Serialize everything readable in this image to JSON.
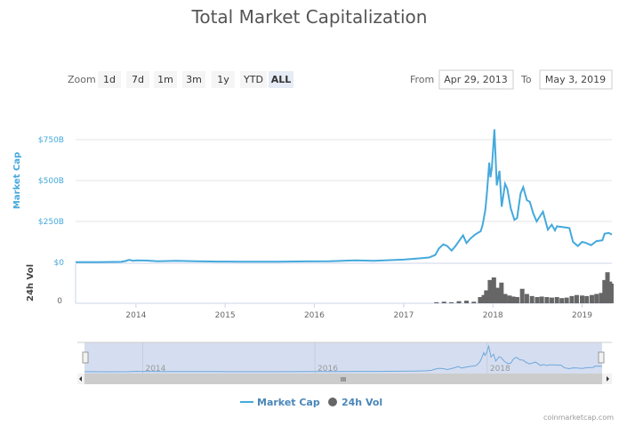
{
  "chart_data": {
    "type": "line",
    "title": "Total Market Capitalization",
    "range_selector": {
      "zoom_label": "Zoom",
      "buttons": [
        "1d",
        "7d",
        "1m",
        "3m",
        "1y",
        "YTD",
        "ALL"
      ],
      "active": "ALL",
      "from_label": "From",
      "from_value": "Apr 29, 2013",
      "to_label": "To",
      "to_value": "May 3, 2019"
    },
    "x_range": [
      "2013-04-29",
      "2019-05-03"
    ],
    "x_ticks": [
      "2014",
      "2015",
      "2016",
      "2017",
      "2018",
      "2019"
    ],
    "navigator_ticks": [
      "2014",
      "2016",
      "2018"
    ],
    "scrollbar_grip": "III",
    "panes": [
      {
        "ylabel": "Market Cap",
        "ylim": [
          0,
          750
        ],
        "y_ticks": [
          "$0",
          "$250B",
          "$500B",
          "$750B"
        ],
        "y_tick_values": [
          0,
          250,
          500,
          750
        ],
        "grid": true
      },
      {
        "ylabel": "24h Vol",
        "y_ticks": [
          "0"
        ]
      }
    ],
    "series": [
      {
        "name": "Market Cap",
        "type": "line",
        "color": "#45a9dc",
        "unit": "USD billions",
        "points": [
          [
            "2013-04-29",
            1.5
          ],
          [
            "2013-08-01",
            1.3
          ],
          [
            "2013-11-01",
            3
          ],
          [
            "2013-11-20",
            8
          ],
          [
            "2013-12-04",
            15
          ],
          [
            "2013-12-20",
            10
          ],
          [
            "2014-01-05",
            12
          ],
          [
            "2014-02-15",
            11
          ],
          [
            "2014-04-01",
            7
          ],
          [
            "2014-06-15",
            9
          ],
          [
            "2014-09-01",
            7
          ],
          [
            "2014-12-01",
            5
          ],
          [
            "2015-03-01",
            4
          ],
          [
            "2015-08-01",
            4
          ],
          [
            "2015-12-01",
            6
          ],
          [
            "2016-03-01",
            7
          ],
          [
            "2016-06-15",
            12
          ],
          [
            "2016-09-01",
            10
          ],
          [
            "2017-01-01",
            17
          ],
          [
            "2017-03-01",
            24
          ],
          [
            "2017-04-15",
            30
          ],
          [
            "2017-05-10",
            45
          ],
          [
            "2017-05-25",
            85
          ],
          [
            "2017-06-12",
            110
          ],
          [
            "2017-06-28",
            100
          ],
          [
            "2017-07-16",
            72
          ],
          [
            "2017-08-01",
            100
          ],
          [
            "2017-08-20",
            140
          ],
          [
            "2017-09-01",
            165
          ],
          [
            "2017-09-15",
            118
          ],
          [
            "2017-10-01",
            145
          ],
          [
            "2017-10-20",
            170
          ],
          [
            "2017-11-12",
            190
          ],
          [
            "2017-11-20",
            230
          ],
          [
            "2017-12-01",
            320
          ],
          [
            "2017-12-08",
            430
          ],
          [
            "2017-12-17",
            610
          ],
          [
            "2017-12-22",
            520
          ],
          [
            "2017-12-28",
            580
          ],
          [
            "2018-01-07",
            813
          ],
          [
            "2018-01-17",
            470
          ],
          [
            "2018-01-28",
            560
          ],
          [
            "2018-02-06",
            340
          ],
          [
            "2018-02-20",
            480
          ],
          [
            "2018-03-01",
            450
          ],
          [
            "2018-03-15",
            330
          ],
          [
            "2018-03-30",
            260
          ],
          [
            "2018-04-10",
            270
          ],
          [
            "2018-04-24",
            420
          ],
          [
            "2018-05-05",
            460
          ],
          [
            "2018-05-20",
            380
          ],
          [
            "2018-06-01",
            370
          ],
          [
            "2018-06-15",
            300
          ],
          [
            "2018-06-29",
            250
          ],
          [
            "2018-07-25",
            310
          ],
          [
            "2018-08-14",
            200
          ],
          [
            "2018-08-30",
            230
          ],
          [
            "2018-09-12",
            195
          ],
          [
            "2018-09-20",
            220
          ],
          [
            "2018-10-15",
            215
          ],
          [
            "2018-11-10",
            210
          ],
          [
            "2018-11-25",
            125
          ],
          [
            "2018-12-15",
            100
          ],
          [
            "2019-01-01",
            125
          ],
          [
            "2019-01-15",
            120
          ],
          [
            "2019-02-07",
            105
          ],
          [
            "2019-03-01",
            130
          ],
          [
            "2019-03-25",
            135
          ],
          [
            "2019-04-03",
            175
          ],
          [
            "2019-04-20",
            180
          ],
          [
            "2019-05-03",
            170
          ]
        ]
      },
      {
        "name": "24h Vol",
        "type": "column",
        "color": "#666666",
        "unit": "USD billions",
        "points": [
          [
            "2017-05-15",
            2
          ],
          [
            "2017-06-15",
            3
          ],
          [
            "2017-07-15",
            2
          ],
          [
            "2017-08-15",
            4
          ],
          [
            "2017-09-15",
            5
          ],
          [
            "2017-10-15",
            3
          ],
          [
            "2017-11-10",
            12
          ],
          [
            "2017-11-25",
            16
          ],
          [
            "2017-12-05",
            25
          ],
          [
            "2017-12-20",
            45
          ],
          [
            "2018-01-05",
            50
          ],
          [
            "2018-01-20",
            30
          ],
          [
            "2018-02-05",
            40
          ],
          [
            "2018-02-20",
            18
          ],
          [
            "2018-03-10",
            15
          ],
          [
            "2018-03-25",
            13
          ],
          [
            "2018-04-10",
            12
          ],
          [
            "2018-05-01",
            28
          ],
          [
            "2018-05-20",
            18
          ],
          [
            "2018-06-10",
            14
          ],
          [
            "2018-07-01",
            12
          ],
          [
            "2018-07-20",
            13
          ],
          [
            "2018-08-10",
            12
          ],
          [
            "2018-08-30",
            11
          ],
          [
            "2018-09-20",
            12
          ],
          [
            "2018-10-10",
            10
          ],
          [
            "2018-10-30",
            11
          ],
          [
            "2018-11-20",
            14
          ],
          [
            "2018-12-10",
            16
          ],
          [
            "2019-01-01",
            15
          ],
          [
            "2019-01-20",
            14
          ],
          [
            "2019-02-10",
            16
          ],
          [
            "2019-03-01",
            18
          ],
          [
            "2019-03-20",
            20
          ],
          [
            "2019-04-03",
            45
          ],
          [
            "2019-04-15",
            60
          ],
          [
            "2019-04-25",
            42
          ],
          [
            "2019-05-01",
            38
          ]
        ]
      }
    ],
    "legend": {
      "placement": "bottom",
      "items": [
        "Market Cap",
        "24h Vol"
      ]
    },
    "credit": "coinmarketcap.com"
  }
}
